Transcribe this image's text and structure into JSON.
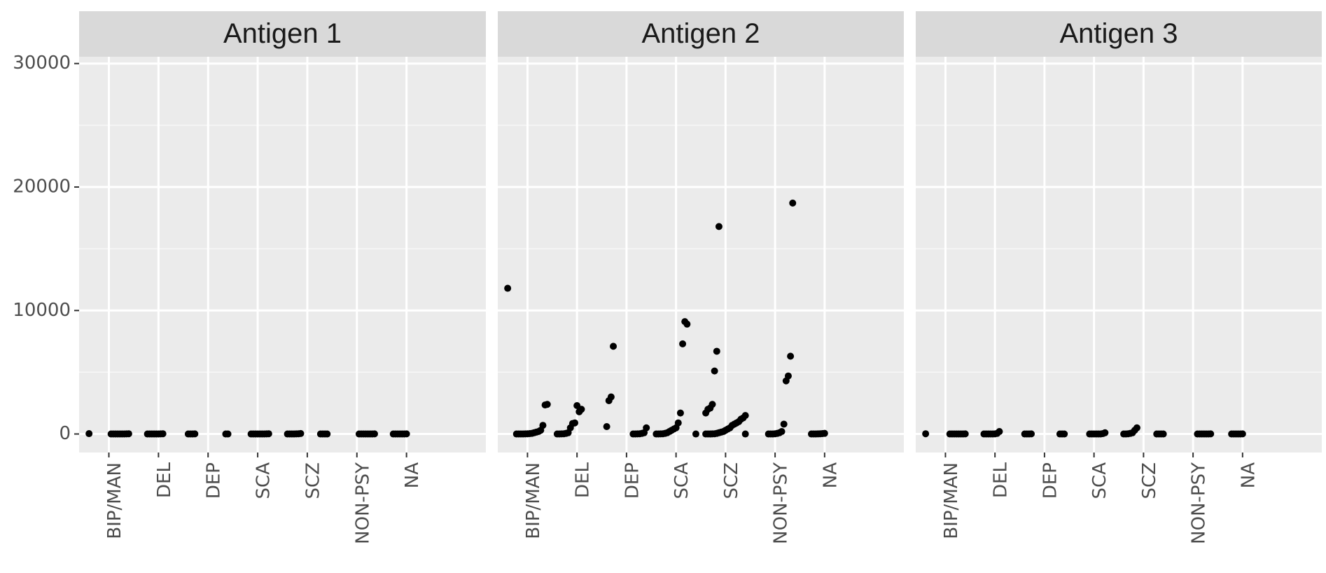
{
  "chart_data": [
    {
      "type": "strip",
      "title": "Antigen 1",
      "categories": [
        "BIP/MAN",
        "DEL",
        "DEP",
        "SCA",
        "SCZ",
        "NON-PSY",
        "NA"
      ],
      "values": [
        [
          30,
          20,
          10,
          5,
          0,
          0,
          0,
          0,
          0,
          0
        ],
        [
          20,
          10,
          0,
          0,
          0,
          0,
          0,
          0
        ],
        [
          10,
          0,
          0,
          0,
          0,
          0
        ],
        [
          20,
          10,
          0,
          0,
          0,
          0,
          0,
          0,
          0
        ],
        [
          40,
          20,
          10,
          0,
          0,
          0,
          0,
          0,
          0,
          0,
          0
        ],
        [
          10,
          0,
          0,
          0,
          0,
          0,
          0,
          0
        ],
        [
          10,
          0,
          0,
          0,
          0,
          0,
          0
        ]
      ],
      "ylim": [
        -1500,
        30550
      ],
      "yticks": [
        0,
        10000,
        20000,
        30000
      ],
      "grid": true,
      "color": "#000000"
    },
    {
      "type": "strip",
      "title": "Antigen 2",
      "categories": [
        "BIP/MAN",
        "DEL",
        "DEP",
        "SCA",
        "SCZ",
        "NON-PSY",
        "NA"
      ],
      "values": [
        [
          11800,
          2400,
          2350,
          700,
          300,
          200,
          150,
          100,
          50,
          30,
          20,
          10,
          5,
          0,
          0,
          0
        ],
        [
          2000,
          1800,
          2300,
          900,
          850,
          500,
          100,
          50,
          20,
          10,
          0,
          0
        ],
        [
          7100,
          3000,
          2700,
          600,
          500,
          100,
          50,
          20,
          10,
          0,
          0
        ],
        [
          8900,
          9100,
          7300,
          1700,
          900,
          500,
          400,
          300,
          200,
          100,
          50,
          20,
          10,
          0,
          0,
          0
        ],
        [
          16800,
          6700,
          5100,
          2400,
          2100,
          2000,
          1700,
          1500,
          1300,
          1200,
          1000,
          900,
          800,
          700,
          500,
          400,
          300,
          200,
          150,
          100,
          50,
          20,
          10,
          0,
          0,
          0,
          0
        ],
        [
          18700,
          6300,
          4700,
          4300,
          800,
          200,
          100,
          50,
          20,
          0,
          0,
          0
        ],
        [
          50,
          30,
          20,
          10,
          0,
          0,
          0
        ]
      ],
      "ylim": [
        -1500,
        30550
      ],
      "yticks": [
        0,
        10000,
        20000,
        30000
      ],
      "grid": true,
      "color": "#000000"
    },
    {
      "type": "strip",
      "title": "Antigen 3",
      "categories": [
        "BIP/MAN",
        "DEL",
        "DEP",
        "SCA",
        "SCZ",
        "NON-PSY",
        "NA"
      ],
      "values": [
        [
          20,
          10,
          0,
          0,
          0,
          0,
          0,
          0,
          0
        ],
        [
          200,
          50,
          10,
          0,
          0,
          0,
          0,
          0
        ],
        [
          10,
          0,
          0,
          0,
          0,
          0,
          0
        ],
        [
          100,
          30,
          0,
          0,
          0,
          0,
          0,
          0
        ],
        [
          500,
          300,
          100,
          50,
          20,
          0,
          0,
          0,
          0,
          0,
          0
        ],
        [
          10,
          0,
          0,
          0,
          0,
          0,
          0
        ],
        [
          10,
          0,
          0,
          0,
          0,
          0
        ]
      ],
      "ylim": [
        -1500,
        30550
      ],
      "yticks": [
        0,
        10000,
        20000,
        30000
      ],
      "grid": true,
      "color": "#000000"
    }
  ]
}
